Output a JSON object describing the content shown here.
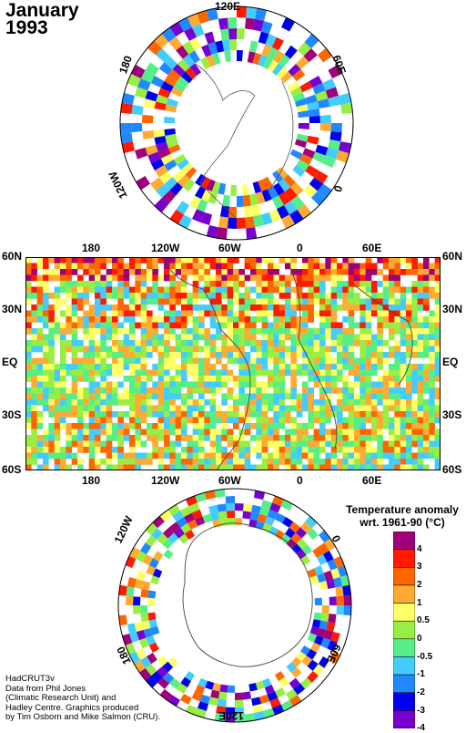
{
  "title": {
    "line1": "January",
    "line2": "1993"
  },
  "north_map": {
    "labels": {
      "top": "120E",
      "left": "180",
      "right": "60E",
      "lower_left": "120W",
      "lower_right": "0"
    }
  },
  "main_map": {
    "top_lon_labels": [
      "180",
      "120W",
      "60W",
      "0",
      "60E"
    ],
    "bottom_lon_labels": [
      "180",
      "120W",
      "60W",
      "0",
      "60E"
    ],
    "left_lat_labels": [
      "60N",
      "30N",
      "EQ",
      "30S",
      "60S"
    ],
    "right_lat_labels": [
      "60N",
      "30N",
      "EQ",
      "30S",
      "60S"
    ]
  },
  "south_map": {
    "labels": {
      "upper_left": "120W",
      "upper_right": "0",
      "lower_left": "180",
      "lower_right": "60E",
      "bottom": "120E"
    }
  },
  "legend": {
    "title_line1": "Temperature anomaly",
    "title_line2": "wrt. 1961-90  (°C)",
    "ticks": [
      "4",
      "3",
      "2",
      "1",
      "0.5",
      "0",
      "-0.5",
      "-1",
      "-2",
      "-3",
      "-4"
    ],
    "colors": [
      "#a0007a",
      "#ff1a00",
      "#ff6600",
      "#ffaa33",
      "#ffff66",
      "#99ee44",
      "#55ee88",
      "#44ccff",
      "#2288ff",
      "#0000ee",
      "#7700cc"
    ]
  },
  "credits": [
    "HadCRUT3v",
    "Data from Phil Jones",
    "(Climatic Research Unit) and",
    "Hadley Centre.  Graphics produced",
    "by Tim Osborn and Mike Salmon (CRU)."
  ]
}
